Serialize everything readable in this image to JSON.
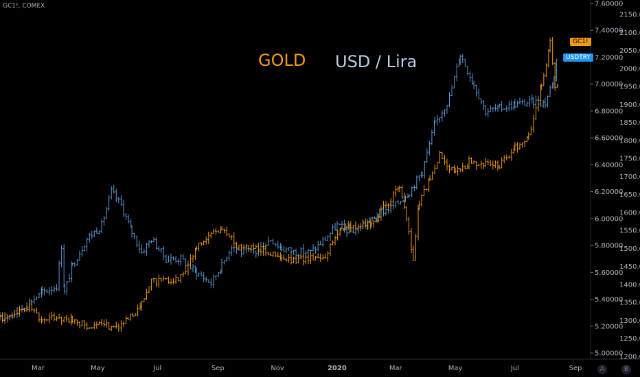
{
  "chart_data": {
    "type": "ohlc",
    "symbol_label": "GC1!, COMEX",
    "annotations": {
      "gold": "GOLD",
      "usdtry": "USD / Lira"
    },
    "x_ticks": [
      "Mar",
      "May",
      "Jul",
      "Sep",
      "Nov",
      "2020",
      "Mar",
      "May",
      "Jul",
      "Sep"
    ],
    "x_range": [
      "2019-01-21",
      "2020-09-15"
    ],
    "left_axis": {
      "ticks": [
        "7.60000",
        "7.40000",
        "7.20000",
        "7.00000",
        "6.80000",
        "6.60000",
        "6.40000",
        "6.20000",
        "6.00000",
        "5.80000",
        "5.60000",
        "5.40000",
        "5.20000",
        "5.00000"
      ],
      "range": [
        5.0,
        7.6
      ]
    },
    "right_axis": {
      "ticks": [
        "2150.0",
        "2100.0",
        "2050.0",
        "2000.0",
        "1950.0",
        "1900.0",
        "1850.0",
        "1800.0",
        "1750.0",
        "1700.0",
        "1650.0",
        "1600.0",
        "1550.0",
        "1500.0",
        "1450.0",
        "1400.0",
        "1350.0",
        "1300.0",
        "1250.0",
        "1200.0"
      ],
      "range": [
        1200,
        2150
      ]
    },
    "series": [
      {
        "name": "USDTRY",
        "color": "#5b9bd5",
        "axis": "left",
        "points": [
          [
            "2019-01-21",
            5.25
          ],
          [
            "2019-02-05",
            5.3
          ],
          [
            "2019-02-20",
            5.38
          ],
          [
            "2019-03-05",
            5.45
          ],
          [
            "2019-03-20",
            5.5
          ],
          [
            "2019-03-25",
            5.8
          ],
          [
            "2019-03-28",
            5.45
          ],
          [
            "2019-04-05",
            5.65
          ],
          [
            "2019-04-20",
            5.85
          ],
          [
            "2019-05-05",
            5.95
          ],
          [
            "2019-05-15",
            6.2
          ],
          [
            "2019-05-25",
            6.1
          ],
          [
            "2019-06-05",
            5.9
          ],
          [
            "2019-06-15",
            5.75
          ],
          [
            "2019-06-25",
            5.85
          ],
          [
            "2019-07-10",
            5.7
          ],
          [
            "2019-07-25",
            5.7
          ],
          [
            "2019-08-10",
            5.6
          ],
          [
            "2019-08-25",
            5.52
          ],
          [
            "2019-09-05",
            5.65
          ],
          [
            "2019-09-15",
            5.8
          ],
          [
            "2019-09-25",
            5.75
          ],
          [
            "2019-10-10",
            5.75
          ],
          [
            "2019-10-25",
            5.85
          ],
          [
            "2019-11-05",
            5.78
          ],
          [
            "2019-11-20",
            5.75
          ],
          [
            "2019-12-05",
            5.75
          ],
          [
            "2019-12-20",
            5.85
          ],
          [
            "2020-01-01",
            5.95
          ],
          [
            "2020-01-15",
            5.9
          ],
          [
            "2020-02-01",
            5.97
          ],
          [
            "2020-02-15",
            6.05
          ],
          [
            "2020-03-01",
            6.1
          ],
          [
            "2020-03-15",
            6.2
          ],
          [
            "2020-03-28",
            6.35
          ],
          [
            "2020-04-10",
            6.7
          ],
          [
            "2020-04-25",
            6.9
          ],
          [
            "2020-05-06",
            7.22
          ],
          [
            "2020-05-20",
            7.0
          ],
          [
            "2020-06-01",
            6.8
          ],
          [
            "2020-06-15",
            6.82
          ],
          [
            "2020-07-01",
            6.85
          ],
          [
            "2020-07-20",
            6.87
          ],
          [
            "2020-08-01",
            6.86
          ],
          [
            "2020-08-10",
            7.05
          ],
          [
            "2020-08-15",
            7.35
          ]
        ]
      },
      {
        "name": "GC1!",
        "color": "#f39c12",
        "axis": "right",
        "points": [
          [
            "2019-01-21",
            1305
          ],
          [
            "2019-02-10",
            1325
          ],
          [
            "2019-02-20",
            1340
          ],
          [
            "2019-03-05",
            1300
          ],
          [
            "2019-03-20",
            1310
          ],
          [
            "2019-04-05",
            1300
          ],
          [
            "2019-04-20",
            1285
          ],
          [
            "2019-05-05",
            1285
          ],
          [
            "2019-05-20",
            1285
          ],
          [
            "2019-06-01",
            1300
          ],
          [
            "2019-06-15",
            1345
          ],
          [
            "2019-06-25",
            1410
          ],
          [
            "2019-07-10",
            1410
          ],
          [
            "2019-07-25",
            1420
          ],
          [
            "2019-08-10",
            1500
          ],
          [
            "2019-08-25",
            1540
          ],
          [
            "2019-09-05",
            1555
          ],
          [
            "2019-09-20",
            1510
          ],
          [
            "2019-10-05",
            1505
          ],
          [
            "2019-10-20",
            1495
          ],
          [
            "2019-11-05",
            1470
          ],
          [
            "2019-11-20",
            1465
          ],
          [
            "2019-12-05",
            1475
          ],
          [
            "2019-12-20",
            1480
          ],
          [
            "2020-01-05",
            1560
          ],
          [
            "2020-01-20",
            1560
          ],
          [
            "2020-02-05",
            1570
          ],
          [
            "2020-02-20",
            1620
          ],
          [
            "2020-03-05",
            1670
          ],
          [
            "2020-03-12",
            1580
          ],
          [
            "2020-03-19",
            1470
          ],
          [
            "2020-03-25",
            1630
          ],
          [
            "2020-04-05",
            1690
          ],
          [
            "2020-04-15",
            1760
          ],
          [
            "2020-05-01",
            1710
          ],
          [
            "2020-05-15",
            1740
          ],
          [
            "2020-06-01",
            1735
          ],
          [
            "2020-06-15",
            1730
          ],
          [
            "2020-07-01",
            1780
          ],
          [
            "2020-07-15",
            1810
          ],
          [
            "2020-07-28",
            1950
          ],
          [
            "2020-08-06",
            2070
          ],
          [
            "2020-08-11",
            1950
          ],
          [
            "2020-08-15",
            1960
          ]
        ]
      }
    ],
    "last_price_tags": [
      {
        "label": "GC1!",
        "color": "#f39c12"
      },
      {
        "label": "USDTRY",
        "color": "#2196f3"
      }
    ],
    "corner_buttons": [
      "A",
      "B"
    ],
    "grid": false,
    "background": "#000000"
  }
}
